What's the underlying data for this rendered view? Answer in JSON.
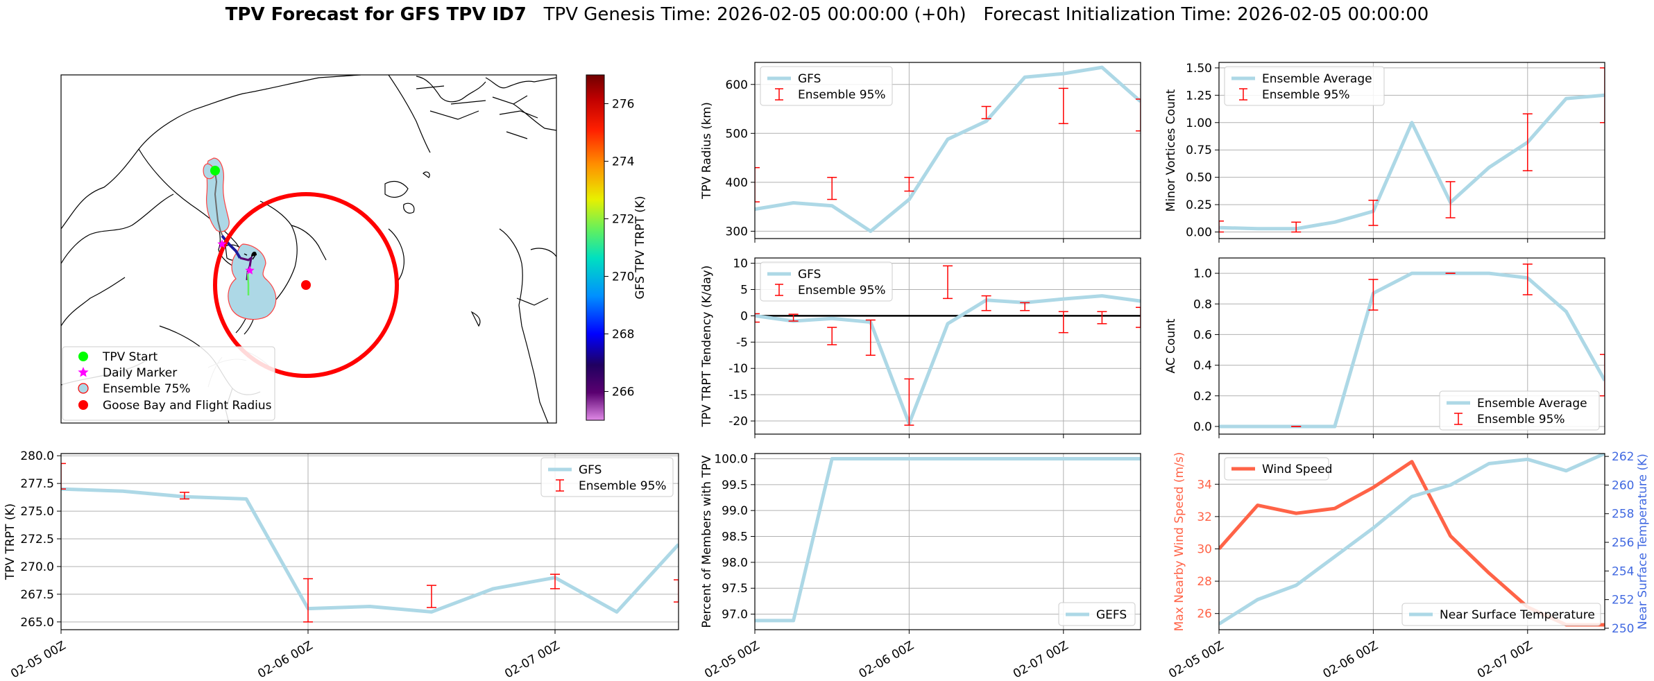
{
  "header": {
    "title_bold": "TPV Forecast for GFS TPV ID7",
    "genesis": "TPV Genesis Time: 2026-02-05 00:00:00 (+0h)",
    "init": "Forecast Initialization Time: 2026-02-05 00:00:00"
  },
  "colors": {
    "ens": "#add8e6",
    "err": "#ff0000",
    "wind": "#ff6347",
    "temp": "#4169e1",
    "start": "#00ff00",
    "daily": "#ff00ff",
    "goose": "#ff0000"
  },
  "map": {
    "colorbar_label": "GFS TPV TRPT (K)",
    "colorbar_ticks": [
      266,
      268,
      270,
      272,
      274,
      276
    ],
    "colorbar_range": [
      265,
      277
    ],
    "legend": [
      "TPV Start",
      "Daily Marker",
      "Ensemble 75%",
      "Goose Bay and Flight Radius"
    ]
  },
  "chart_data": [
    {
      "id": "radius",
      "type": "line",
      "ylabel": "TPV Radius (km)",
      "ylim": [
        285,
        645
      ],
      "yticks": [
        300,
        400,
        500,
        600
      ],
      "xlim": [
        0,
        2.5
      ],
      "grid": true,
      "legend_pos": "top-left",
      "series": [
        {
          "name": "GFS",
          "kind": "line",
          "x": [
            0,
            0.25,
            0.5,
            0.75,
            1.0,
            1.25,
            1.5,
            1.75,
            2.0,
            2.25,
            2.5
          ],
          "y": [
            345,
            358,
            352,
            300,
            365,
            488,
            525,
            615,
            622,
            635,
            565
          ]
        }
      ],
      "errors": [
        {
          "x": 0,
          "lo": 360,
          "hi": 430
        },
        {
          "x": 0.5,
          "lo": 365,
          "hi": 410
        },
        {
          "x": 1.0,
          "lo": 382,
          "hi": 410
        },
        {
          "x": 1.5,
          "lo": 530,
          "hi": 555
        },
        {
          "x": 2.0,
          "lo": 520,
          "hi": 592
        },
        {
          "x": 2.5,
          "lo": 505,
          "hi": 570
        }
      ],
      "errors_name": "Ensemble 95%"
    },
    {
      "id": "minor",
      "type": "line",
      "ylabel": "Minor Vortices Count",
      "ylim": [
        -0.06,
        1.55
      ],
      "yticks": [
        0.0,
        0.25,
        0.5,
        0.75,
        1.0,
        1.25,
        1.5
      ],
      "ytick_labels": [
        "0.00",
        "0.25",
        "0.50",
        "0.75",
        "1.00",
        "1.25",
        "1.50"
      ],
      "xlim": [
        0,
        2.5
      ],
      "grid": true,
      "legend_pos": "top-left",
      "series": [
        {
          "name": "Ensemble Average",
          "kind": "line",
          "x": [
            0,
            0.25,
            0.5,
            0.75,
            1.0,
            1.25,
            1.5,
            1.75,
            2.0,
            2.25,
            2.5
          ],
          "y": [
            0.04,
            0.03,
            0.03,
            0.09,
            0.19,
            1.0,
            0.27,
            0.59,
            0.82,
            1.22,
            1.25
          ]
        }
      ],
      "errors": [
        {
          "x": 0,
          "lo": 0.0,
          "hi": 0.1
        },
        {
          "x": 0.5,
          "lo": 0.0,
          "hi": 0.09
        },
        {
          "x": 1.0,
          "lo": 0.06,
          "hi": 0.29
        },
        {
          "x": 1.5,
          "lo": 0.13,
          "hi": 0.46
        },
        {
          "x": 2.0,
          "lo": 0.56,
          "hi": 1.08
        },
        {
          "x": 2.5,
          "lo": 1.0,
          "hi": 1.5
        }
      ],
      "errors_name": "Ensemble 95%"
    },
    {
      "id": "tend",
      "type": "line",
      "ylabel": "TPV TRPT Tendency (K/day)",
      "ylim": [
        -22.5,
        11
      ],
      "yticks": [
        -20,
        -15,
        -10,
        -5,
        0,
        5,
        10
      ],
      "xlim": [
        0,
        2.5
      ],
      "grid": true,
      "zero_line": true,
      "legend_pos": "top-left",
      "series": [
        {
          "name": "GFS",
          "kind": "line",
          "x": [
            0,
            0.25,
            0.5,
            0.75,
            1.0,
            1.25,
            1.5,
            1.75,
            2.0,
            2.25,
            2.5
          ],
          "y": [
            0,
            -1,
            -0.5,
            -1.2,
            -20.5,
            -1.5,
            3.0,
            2.5,
            3.2,
            3.8,
            2.8
          ]
        }
      ],
      "errors": [
        {
          "x": 0,
          "lo": -1.2,
          "hi": 0.4
        },
        {
          "x": 0.25,
          "lo": -1.0,
          "hi": 0.3
        },
        {
          "x": 0.5,
          "lo": -5.5,
          "hi": -2.2
        },
        {
          "x": 0.75,
          "lo": -7.5,
          "hi": -0.8
        },
        {
          "x": 1.0,
          "lo": -20.8,
          "hi": -12.0
        },
        {
          "x": 1.25,
          "lo": 3.3,
          "hi": 9.5
        },
        {
          "x": 1.5,
          "lo": 1.0,
          "hi": 3.8
        },
        {
          "x": 1.75,
          "lo": 1.0,
          "hi": 2.5
        },
        {
          "x": 2.0,
          "lo": -3.2,
          "hi": 0.8
        },
        {
          "x": 2.25,
          "lo": -1.5,
          "hi": 0.8
        },
        {
          "x": 2.5,
          "lo": -2.2,
          "hi": 1.6
        }
      ],
      "errors_name": "Ensemble 95%"
    },
    {
      "id": "ac",
      "type": "line",
      "ylabel": "AC Count",
      "ylim": [
        -0.05,
        1.1
      ],
      "yticks": [
        0.0,
        0.2,
        0.4,
        0.6,
        0.8,
        1.0
      ],
      "ytick_labels": [
        "0.0",
        "0.2",
        "0.4",
        "0.6",
        "0.8",
        "1.0"
      ],
      "xlim": [
        0,
        2.5
      ],
      "grid": true,
      "legend_pos": "bottom-right",
      "series": [
        {
          "name": "Ensemble Average",
          "kind": "line",
          "x": [
            0,
            0.25,
            0.5,
            0.75,
            1.0,
            1.25,
            1.5,
            1.75,
            2.0,
            2.25,
            2.5
          ],
          "y": [
            0,
            0,
            0,
            0,
            0.87,
            1.0,
            1.0,
            1.0,
            0.97,
            0.75,
            0.3
          ]
        }
      ],
      "errors": [
        {
          "x": 0.5,
          "lo": 0.0,
          "hi": 0.0
        },
        {
          "x": 1.0,
          "lo": 0.76,
          "hi": 0.96
        },
        {
          "x": 1.5,
          "lo": 1.0,
          "hi": 1.0
        },
        {
          "x": 2.0,
          "lo": 0.86,
          "hi": 1.06
        },
        {
          "x": 2.5,
          "lo": 0.2,
          "hi": 0.47
        }
      ],
      "errors_name": "Ensemble 95%"
    },
    {
      "id": "trpt",
      "type": "line",
      "ylabel": "TPV TRPT (K)",
      "ylim": [
        264.3,
        280.2
      ],
      "yticks": [
        265.0,
        267.5,
        270.0,
        272.5,
        275.0,
        277.5,
        280.0
      ],
      "ytick_labels": [
        "265.0",
        "267.5",
        "270.0",
        "272.5",
        "275.0",
        "277.5",
        "280.0"
      ],
      "xlim": [
        0,
        2.5
      ],
      "xticks": [
        0,
        1,
        2
      ],
      "xtick_labels": [
        "02-05 00Z",
        "02-06 00Z",
        "02-07 00Z"
      ],
      "grid": true,
      "legend_pos": "top-right",
      "series": [
        {
          "name": "GFS",
          "kind": "line",
          "x": [
            0,
            0.25,
            0.5,
            0.75,
            1.0,
            1.25,
            1.5,
            1.75,
            2.0,
            2.25,
            2.5
          ],
          "y": [
            277.0,
            276.8,
            276.3,
            276.1,
            266.2,
            266.4,
            265.9,
            268.0,
            269.0,
            265.9,
            272.0
          ]
        }
      ],
      "errors": [
        {
          "x": 0,
          "lo": 277.0,
          "hi": 279.3
        },
        {
          "x": 0.5,
          "lo": 276.1,
          "hi": 276.7
        },
        {
          "x": 1.0,
          "lo": 265.0,
          "hi": 268.9
        },
        {
          "x": 1.5,
          "lo": 266.3,
          "hi": 268.3
        },
        {
          "x": 2.0,
          "lo": 268.0,
          "hi": 269.3
        },
        {
          "x": 2.5,
          "lo": 266.8,
          "hi": 268.8
        }
      ],
      "errors_name": "Ensemble 95%"
    },
    {
      "id": "pct",
      "type": "line",
      "ylabel": "Percent of Members with TPV",
      "ylim": [
        96.7,
        100.1
      ],
      "yticks": [
        97.0,
        97.5,
        98.0,
        98.5,
        99.0,
        99.5,
        100.0
      ],
      "ytick_labels": [
        "97.0",
        "97.5",
        "98.0",
        "98.5",
        "99.0",
        "99.5",
        "100.0"
      ],
      "xlim": [
        0,
        2.5
      ],
      "xticks": [
        0,
        1,
        2
      ],
      "xtick_labels": [
        "02-05 00Z",
        "02-06 00Z",
        "02-07 00Z"
      ],
      "grid": true,
      "legend_pos": "bottom-right",
      "series": [
        {
          "name": "GEFS",
          "kind": "line",
          "x": [
            0,
            0.25,
            0.5,
            0.75,
            1.0,
            1.25,
            1.5,
            1.75,
            2.0,
            2.25,
            2.5
          ],
          "y": [
            96.875,
            96.875,
            100,
            100,
            100,
            100,
            100,
            100,
            100,
            100,
            100
          ]
        }
      ],
      "errors": []
    },
    {
      "id": "wind",
      "type": "line",
      "ylabel": "Max Nearby Wind Speed (m/s)",
      "y2label": "Near Surface Temperature (K)",
      "ylim": [
        25.0,
        35.9
      ],
      "yticks": [
        26,
        28,
        30,
        32,
        34
      ],
      "y2lim": [
        249.9,
        262.2
      ],
      "y2ticks": [
        250,
        252,
        254,
        256,
        258,
        260,
        262
      ],
      "xlim": [
        0,
        2.5
      ],
      "xticks": [
        0,
        1,
        2
      ],
      "xtick_labels": [
        "02-05 00Z",
        "02-06 00Z",
        "02-07 00Z"
      ],
      "grid": true,
      "series": [
        {
          "name": "Wind Speed",
          "kind": "line",
          "axis": "left",
          "x": [
            0,
            0.25,
            0.5,
            0.75,
            1.0,
            1.25,
            1.5,
            1.75,
            2.0,
            2.25,
            2.5
          ],
          "y": [
            30.0,
            32.7,
            32.2,
            32.5,
            33.8,
            35.4,
            30.8,
            28.5,
            26.4,
            25.3,
            25.3
          ]
        },
        {
          "name": "Near Surface Temperature",
          "kind": "line",
          "axis": "right",
          "x": [
            0,
            0.25,
            0.5,
            0.75,
            1.0,
            1.25,
            1.5,
            1.75,
            2.0,
            2.25,
            2.5
          ],
          "y": [
            250.3,
            252.0,
            253.0,
            255.0,
            257.0,
            259.2,
            260.0,
            261.5,
            261.8,
            261.0,
            262.2
          ]
        }
      ],
      "errors": []
    }
  ]
}
